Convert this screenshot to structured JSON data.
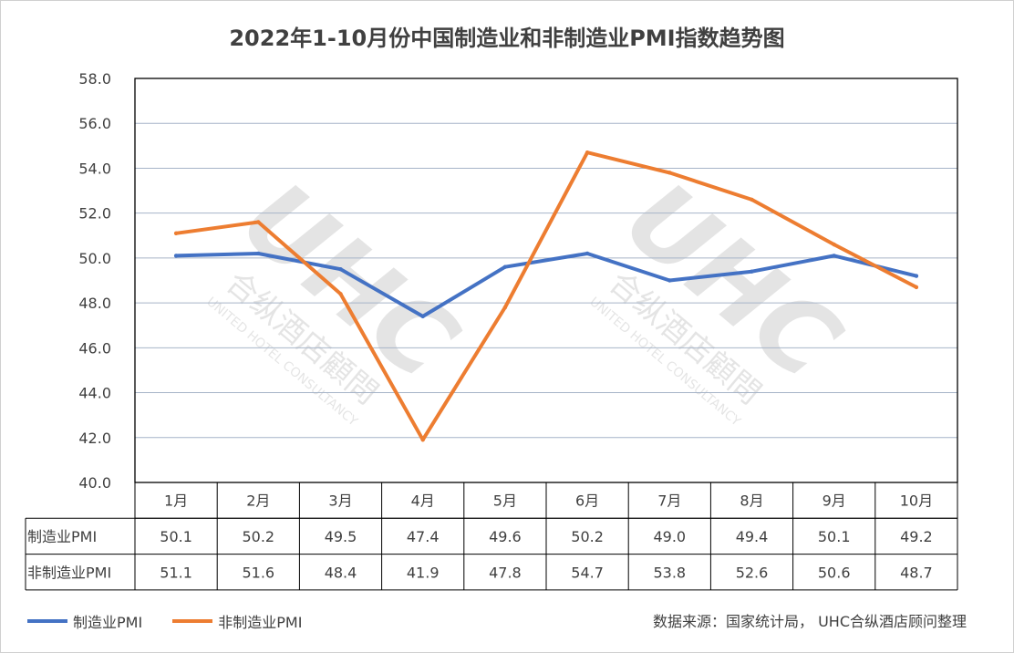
{
  "chart_data": {
    "type": "line",
    "title": "2022年1-10月份中国制造业和非制造业PMI指数趋势图",
    "categories": [
      "1月",
      "2月",
      "3月",
      "4月",
      "5月",
      "6月",
      "7月",
      "8月",
      "9月",
      "10月"
    ],
    "series": [
      {
        "name": "制造业PMI",
        "color": "#4472c4",
        "values": [
          50.1,
          50.2,
          49.5,
          47.4,
          49.6,
          50.2,
          49.0,
          49.4,
          50.1,
          49.2
        ]
      },
      {
        "name": "非制造业PMI",
        "color": "#ed7d31",
        "values": [
          51.1,
          51.6,
          48.4,
          41.9,
          47.8,
          54.7,
          53.8,
          52.6,
          50.6,
          48.7
        ]
      }
    ],
    "ylim": [
      40,
      58
    ],
    "ytick_step": 2,
    "yticks": [
      "40.0",
      "42.0",
      "44.0",
      "46.0",
      "48.0",
      "50.0",
      "52.0",
      "54.0",
      "56.0",
      "58.0"
    ],
    "grid": true,
    "data_table": true,
    "legend_position": "bottom-left"
  },
  "source": "数据来源：国家统计局， UHC合纵酒店顾问整理",
  "watermark": {
    "logo": "UHC",
    "cn": "合纵酒店顧問",
    "en": "UNITED HOTEL CONSULTANCY"
  }
}
